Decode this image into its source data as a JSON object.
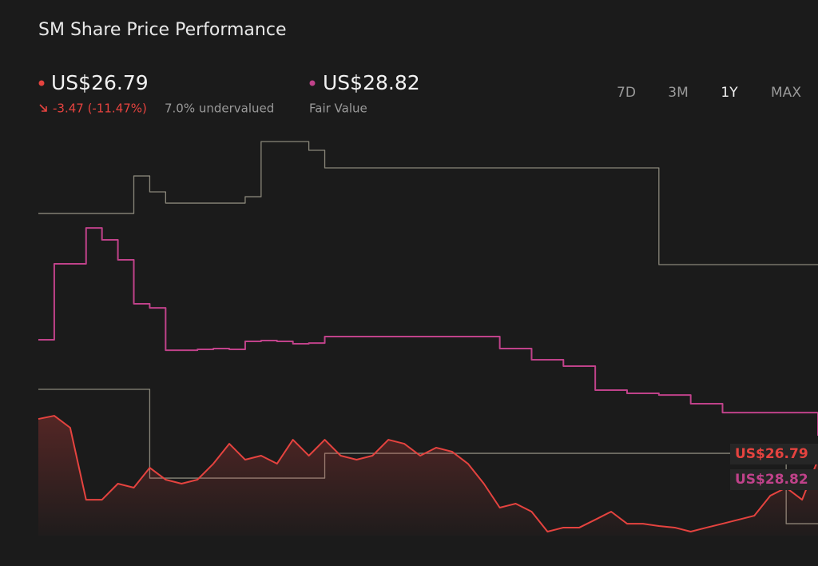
{
  "header": {
    "title": "SM Share Price Performance",
    "price": {
      "value": "US$26.79",
      "change": "-3.47 (-11.47%)",
      "valuation": "7.0% undervalued"
    },
    "fair_value": {
      "value": "US$28.82",
      "label": "Fair Value"
    }
  },
  "periods": {
    "options": [
      "7D",
      "3M",
      "1Y",
      "MAX"
    ],
    "selected": "1Y"
  },
  "chart_data": {
    "type": "line",
    "ylim": [
      20.36,
      54.21
    ],
    "series": [
      {
        "color": "#8a877a",
        "step": true,
        "values": [
          47.64,
          47.64,
          47.64,
          47.64,
          47.64,
          47.64,
          50.82,
          49.47,
          48.52,
          48.52,
          48.52,
          48.52,
          48.52,
          49.06,
          53.73,
          53.73,
          53.73,
          52.99,
          51.5,
          51.5,
          51.5,
          51.5,
          51.5,
          51.5,
          51.5,
          51.5,
          51.5,
          51.5,
          51.5,
          51.5,
          51.5,
          51.5,
          51.5,
          51.5,
          51.5,
          51.5,
          51.5,
          51.5,
          51.5,
          43.31,
          43.31,
          43.31,
          43.31,
          43.31,
          43.31,
          43.31,
          43.31,
          43.31,
          43.31,
          43.31
        ]
      },
      {
        "color": "#8a877a",
        "step": true,
        "values": [
          32.75,
          32.75,
          32.75,
          32.75,
          32.75,
          32.75,
          32.75,
          25.23,
          25.23,
          25.23,
          25.23,
          25.23,
          25.23,
          25.23,
          25.23,
          25.23,
          25.23,
          25.23,
          27.33,
          27.33,
          27.33,
          27.33,
          27.33,
          27.33,
          27.33,
          27.33,
          27.33,
          27.33,
          27.33,
          27.33,
          27.33,
          27.33,
          27.33,
          27.33,
          27.33,
          27.33,
          27.33,
          27.33,
          27.33,
          27.33,
          27.33,
          27.33,
          27.33,
          27.33,
          27.33,
          27.33,
          27.33,
          21.37,
          21.37,
          21.37
        ]
      },
      {
        "color": "#c0428a",
        "step": true,
        "values": [
          36.95,
          43.38,
          43.38,
          46.42,
          45.41,
          43.72,
          39.99,
          39.65,
          36.06,
          36.06,
          36.13,
          36.2,
          36.13,
          36.81,
          36.88,
          36.81,
          36.61,
          36.67,
          37.22,
          37.22,
          37.22,
          37.22,
          37.22,
          37.22,
          37.22,
          37.22,
          37.22,
          37.22,
          37.22,
          36.2,
          36.2,
          35.25,
          35.25,
          34.71,
          34.71,
          32.68,
          32.68,
          32.41,
          32.41,
          32.27,
          32.27,
          31.53,
          31.53,
          30.78,
          30.78,
          30.78,
          30.78,
          30.78,
          30.78,
          28.82
        ]
      },
      {
        "color": "#e5433f",
        "area": true,
        "values": [
          30.24,
          30.51,
          29.5,
          23.4,
          23.4,
          24.76,
          24.42,
          26.11,
          25.1,
          24.76,
          25.1,
          26.45,
          28.14,
          26.79,
          27.13,
          26.45,
          28.48,
          27.13,
          28.48,
          27.13,
          26.79,
          27.13,
          28.48,
          28.14,
          27.13,
          27.81,
          27.47,
          26.45,
          24.76,
          22.73,
          23.07,
          22.39,
          20.7,
          21.04,
          21.04,
          21.71,
          22.39,
          21.37,
          21.37,
          21.17,
          21.04,
          20.7,
          21.04,
          21.37,
          21.71,
          22.05,
          23.74,
          24.42,
          23.4,
          26.79
        ]
      }
    ]
  }
}
